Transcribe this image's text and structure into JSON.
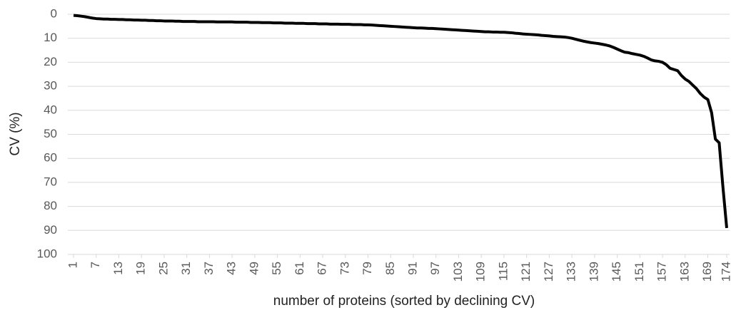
{
  "chart_data": {
    "type": "line",
    "xlabel": "number of proteins (sorted by declining CV)",
    "ylabel": "CV  (%)",
    "x": [
      1,
      2,
      3,
      4,
      5,
      6,
      7,
      8,
      9,
      10,
      11,
      12,
      13,
      14,
      15,
      16,
      17,
      18,
      19,
      20,
      21,
      22,
      23,
      24,
      25,
      26,
      27,
      28,
      29,
      30,
      31,
      32,
      33,
      34,
      35,
      36,
      37,
      38,
      39,
      40,
      41,
      42,
      43,
      44,
      45,
      46,
      47,
      48,
      49,
      50,
      51,
      52,
      53,
      54,
      55,
      56,
      57,
      58,
      59,
      60,
      61,
      62,
      63,
      64,
      65,
      66,
      67,
      68,
      69,
      70,
      71,
      72,
      73,
      74,
      75,
      76,
      77,
      78,
      79,
      80,
      81,
      82,
      83,
      84,
      85,
      86,
      87,
      88,
      89,
      90,
      91,
      92,
      93,
      94,
      95,
      96,
      97,
      98,
      99,
      100,
      101,
      102,
      103,
      104,
      105,
      106,
      107,
      108,
      109,
      110,
      111,
      112,
      113,
      114,
      115,
      116,
      117,
      118,
      119,
      120,
      121,
      122,
      123,
      124,
      125,
      126,
      127,
      128,
      129,
      130,
      131,
      132,
      133,
      134,
      135,
      136,
      137,
      138,
      139,
      140,
      141,
      142,
      143,
      144,
      145,
      146,
      147,
      148,
      149,
      150,
      151,
      152,
      153,
      154,
      155,
      156,
      157,
      158,
      159,
      160,
      161,
      162,
      163,
      164,
      165,
      166,
      167,
      168,
      169,
      170,
      171,
      172,
      173,
      174
    ],
    "values": [
      0.5,
      0.6,
      0.8,
      1.0,
      1.3,
      1.6,
      1.8,
      1.9,
      2.0,
      2.0,
      2.1,
      2.1,
      2.2,
      2.2,
      2.3,
      2.3,
      2.4,
      2.4,
      2.5,
      2.5,
      2.6,
      2.6,
      2.7,
      2.7,
      2.8,
      2.8,
      2.8,
      2.9,
      2.9,
      3.0,
      3.0,
      3.0,
      3.0,
      3.1,
      3.1,
      3.1,
      3.1,
      3.1,
      3.2,
      3.2,
      3.2,
      3.2,
      3.2,
      3.3,
      3.3,
      3.3,
      3.3,
      3.4,
      3.4,
      3.4,
      3.5,
      3.5,
      3.5,
      3.6,
      3.6,
      3.6,
      3.7,
      3.7,
      3.7,
      3.8,
      3.8,
      3.8,
      3.9,
      3.9,
      3.9,
      4.0,
      4.0,
      4.0,
      4.1,
      4.1,
      4.1,
      4.2,
      4.2,
      4.2,
      4.3,
      4.3,
      4.3,
      4.4,
      4.4,
      4.5,
      4.6,
      4.7,
      4.8,
      4.9,
      5.0,
      5.1,
      5.2,
      5.3,
      5.4,
      5.5,
      5.6,
      5.7,
      5.7,
      5.8,
      5.9,
      5.9,
      6.0,
      6.1,
      6.2,
      6.3,
      6.4,
      6.5,
      6.6,
      6.7,
      6.8,
      6.9,
      7.0,
      7.1,
      7.2,
      7.3,
      7.3,
      7.4,
      7.4,
      7.5,
      7.5,
      7.6,
      7.7,
      7.9,
      8.0,
      8.2,
      8.3,
      8.4,
      8.5,
      8.6,
      8.8,
      8.9,
      9.0,
      9.2,
      9.3,
      9.4,
      9.5,
      9.7,
      10.0,
      10.4,
      10.8,
      11.2,
      11.5,
      11.8,
      12.0,
      12.2,
      12.5,
      12.8,
      13.2,
      13.8,
      14.5,
      15.2,
      15.8,
      16.0,
      16.4,
      16.7,
      17.0,
      17.5,
      18.2,
      19.0,
      19.4,
      19.6,
      20.0,
      21.0,
      22.5,
      23.0,
      23.5,
      25.5,
      27.0,
      28.0,
      29.5,
      31.0,
      33.0,
      34.5,
      35.5,
      41.0,
      52.0,
      53.5,
      72.0,
      89.0
    ],
    "color": "#000000",
    "xlim": [
      1,
      174
    ],
    "xticks": [
      1,
      7,
      13,
      19,
      25,
      31,
      37,
      43,
      49,
      55,
      61,
      67,
      73,
      79,
      85,
      91,
      97,
      103,
      109,
      115,
      121,
      127,
      133,
      139,
      145,
      151,
      157,
      163,
      169,
      174
    ],
    "ylim": [
      0,
      100
    ],
    "yticks": [
      0,
      10,
      20,
      30,
      40,
      50,
      60,
      70,
      80,
      90,
      100
    ],
    "y_inverted": true,
    "grid": true
  }
}
